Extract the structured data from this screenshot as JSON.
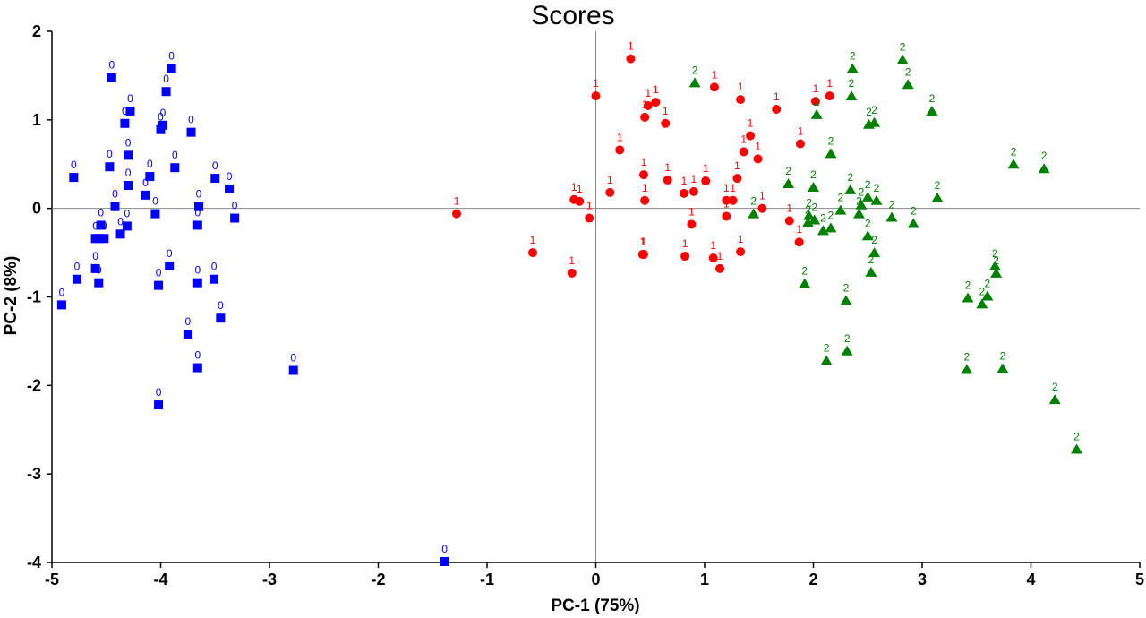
{
  "chart_data": {
    "type": "scatter",
    "title": "Scores",
    "xlabel": "PC-1 (75%)",
    "ylabel": "PC-2 (8%)",
    "xlim": [
      -5,
      5
    ],
    "ylim": [
      -4,
      2
    ],
    "xticks": [
      "-5",
      "-4",
      "-3",
      "-2",
      "-1",
      "0",
      "1",
      "2",
      "3",
      "4",
      "5"
    ],
    "yticks": [
      "2",
      "1",
      "0",
      "-1",
      "-2",
      "-3",
      "-4"
    ],
    "grid": false,
    "zero_lines": true,
    "series": [
      {
        "label": "0",
        "marker": "square",
        "color": "#0000ff",
        "x": [
          -4.45,
          -3.9,
          -3.95,
          -4.28,
          -4.33,
          -4.0,
          -3.72,
          -4.3,
          -4.47,
          -3.87,
          -4.8,
          -4.1,
          -3.5,
          -3.37,
          -4.3,
          -4.14,
          -4.42,
          -4.05,
          -3.32,
          -3.66,
          -4.55,
          -4.57,
          -4.6,
          -4.52,
          -4.37,
          -4.31,
          -4.02,
          -4.6,
          -4.77,
          -4.57,
          -4.91,
          -3.66,
          -3.51,
          -3.45,
          -3.75,
          -3.66,
          -4.02,
          -2.78,
          -1.39,
          -3.98,
          -3.92,
          -3.65
        ],
        "y": [
          1.48,
          1.58,
          1.32,
          1.1,
          0.96,
          0.89,
          0.86,
          0.6,
          0.47,
          0.46,
          0.35,
          0.36,
          0.34,
          0.22,
          0.26,
          0.15,
          0.02,
          -0.06,
          -0.11,
          -0.19,
          -0.19,
          -0.34,
          -0.34,
          -0.34,
          -0.29,
          -0.2,
          -0.87,
          -0.68,
          -0.8,
          -0.84,
          -1.09,
          -0.84,
          -0.8,
          -1.24,
          -1.42,
          -1.8,
          -2.22,
          -1.83,
          -3.99,
          0.94,
          -0.65,
          0.02
        ]
      },
      {
        "label": "1",
        "marker": "circle",
        "color": "#ff0000",
        "x": [
          0.32,
          0.0,
          1.09,
          1.33,
          2.15,
          0.48,
          0.55,
          0.45,
          0.64,
          1.66,
          1.42,
          1.88,
          1.36,
          1.49,
          0.22,
          0.44,
          0.45,
          0.66,
          0.81,
          0.9,
          1.01,
          1.2,
          1.26,
          1.3,
          -0.2,
          0.13,
          -0.15,
          -0.06,
          0.44,
          0.88,
          1.2,
          1.53,
          1.78,
          1.87,
          -0.58,
          0.43,
          0.82,
          1.08,
          1.14,
          1.33,
          -0.22,
          -1.28,
          2.02
        ],
        "y": [
          1.69,
          1.27,
          1.37,
          1.23,
          1.27,
          1.16,
          1.2,
          1.03,
          0.96,
          1.12,
          0.82,
          0.73,
          0.64,
          0.56,
          0.66,
          0.38,
          0.09,
          0.32,
          0.17,
          0.19,
          0.31,
          0.09,
          0.09,
          0.34,
          0.1,
          0.18,
          0.08,
          -0.11,
          -0.52,
          -0.18,
          -0.09,
          0.0,
          -0.14,
          -0.38,
          -0.5,
          -0.52,
          -0.54,
          -0.56,
          -0.68,
          -0.49,
          -0.73,
          -0.06,
          1.21
        ]
      },
      {
        "label": "2",
        "marker": "triangle",
        "color": "#008000",
        "x": [
          0.91,
          2.82,
          2.36,
          2.87,
          2.35,
          2.03,
          3.09,
          2.56,
          2.51,
          2.16,
          3.84,
          4.12,
          1.77,
          2.0,
          2.34,
          3.14,
          2.44,
          2.5,
          2.58,
          1.45,
          2.25,
          2.42,
          2.72,
          2.92,
          1.95,
          2.16,
          2.09,
          1.96,
          2.5,
          2.56,
          2.53,
          3.67,
          3.68,
          3.42,
          3.6,
          3.55,
          1.92,
          2.3,
          2.12,
          2.31,
          3.41,
          3.74,
          4.22,
          4.42,
          2.01
        ],
        "y": [
          1.42,
          1.68,
          1.58,
          1.4,
          1.27,
          1.06,
          1.1,
          0.97,
          0.95,
          0.62,
          0.5,
          0.45,
          0.28,
          0.24,
          0.21,
          0.12,
          0.04,
          0.13,
          0.09,
          -0.06,
          -0.02,
          -0.06,
          -0.1,
          -0.17,
          -0.16,
          -0.22,
          -0.25,
          -0.08,
          -0.31,
          -0.5,
          -0.72,
          -0.65,
          -0.73,
          -1.01,
          -0.99,
          -1.08,
          -0.85,
          -1.04,
          -1.72,
          -1.61,
          -1.82,
          -1.81,
          -2.16,
          -2.72,
          -0.13
        ]
      }
    ]
  }
}
